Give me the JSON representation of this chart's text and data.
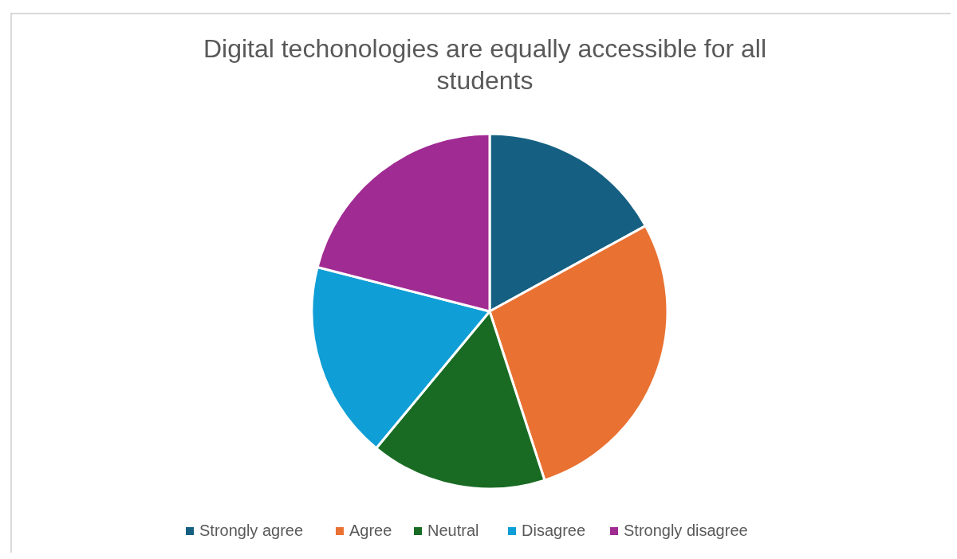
{
  "chart_data": {
    "type": "pie",
    "title": "Digital techonologies are equally accessible for all students",
    "categories": [
      "Strongly agree",
      "Agree",
      "Neutral",
      "Disagree",
      "Strongly disagree"
    ],
    "values": [
      17,
      28,
      16,
      18,
      21
    ],
    "colors": [
      "#156082",
      "#e97132",
      "#196b24",
      "#0f9ed5",
      "#a02b93"
    ],
    "legend": "bottom"
  }
}
